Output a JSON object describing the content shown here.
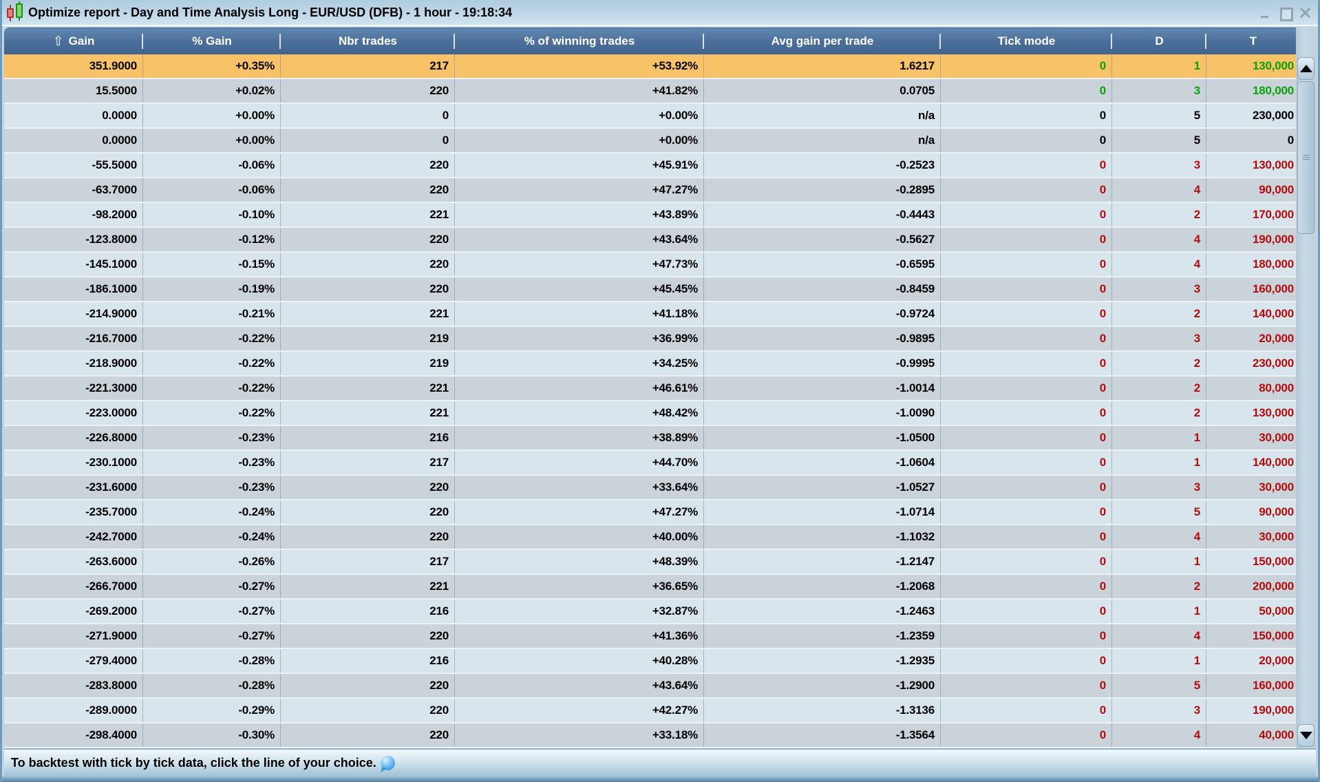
{
  "window": {
    "title": "Optimize report - Day and Time Analysis Long - EUR/USD (DFB) - 1 hour - 19:18:34"
  },
  "table": {
    "sort_icon": "⇧",
    "columns": [
      {
        "key": "gain",
        "label": "Gain",
        "sorted": true
      },
      {
        "key": "gain_pct",
        "label": "% Gain",
        "sorted": false
      },
      {
        "key": "nbr_trades",
        "label": "Nbr trades",
        "sorted": false
      },
      {
        "key": "win_pct",
        "label": "% of winning trades",
        "sorted": false
      },
      {
        "key": "avg_gain",
        "label": "Avg gain per trade",
        "sorted": false
      },
      {
        "key": "tick_mode",
        "label": "Tick mode",
        "sorted": false
      },
      {
        "key": "d",
        "label": "D",
        "sorted": false
      },
      {
        "key": "t",
        "label": "T",
        "sorted": false
      }
    ],
    "rows": [
      {
        "gain": "351.9000",
        "gain_pct": "+0.35%",
        "nbr_trades": "217",
        "win_pct": "+53.92%",
        "avg_gain": "1.6217",
        "tick_mode": "0",
        "d": "1",
        "t": "130,000",
        "value_color": "green",
        "highlighted": true
      },
      {
        "gain": "15.5000",
        "gain_pct": "+0.02%",
        "nbr_trades": "220",
        "win_pct": "+41.82%",
        "avg_gain": "0.0705",
        "tick_mode": "0",
        "d": "3",
        "t": "180,000",
        "value_color": "green",
        "highlighted": false
      },
      {
        "gain": "0.0000",
        "gain_pct": "+0.00%",
        "nbr_trades": "0",
        "win_pct": "+0.00%",
        "avg_gain": "n/a",
        "tick_mode": "0",
        "d": "5",
        "t": "230,000",
        "value_color": "black",
        "highlighted": false
      },
      {
        "gain": "0.0000",
        "gain_pct": "+0.00%",
        "nbr_trades": "0",
        "win_pct": "+0.00%",
        "avg_gain": "n/a",
        "tick_mode": "0",
        "d": "5",
        "t": "0",
        "value_color": "black",
        "highlighted": false
      },
      {
        "gain": "-55.5000",
        "gain_pct": "-0.06%",
        "nbr_trades": "220",
        "win_pct": "+45.91%",
        "avg_gain": "-0.2523",
        "tick_mode": "0",
        "d": "3",
        "t": "130,000",
        "value_color": "red",
        "highlighted": false
      },
      {
        "gain": "-63.7000",
        "gain_pct": "-0.06%",
        "nbr_trades": "220",
        "win_pct": "+47.27%",
        "avg_gain": "-0.2895",
        "tick_mode": "0",
        "d": "4",
        "t": "90,000",
        "value_color": "red",
        "highlighted": false
      },
      {
        "gain": "-98.2000",
        "gain_pct": "-0.10%",
        "nbr_trades": "221",
        "win_pct": "+43.89%",
        "avg_gain": "-0.4443",
        "tick_mode": "0",
        "d": "2",
        "t": "170,000",
        "value_color": "red",
        "highlighted": false
      },
      {
        "gain": "-123.8000",
        "gain_pct": "-0.12%",
        "nbr_trades": "220",
        "win_pct": "+43.64%",
        "avg_gain": "-0.5627",
        "tick_mode": "0",
        "d": "4",
        "t": "190,000",
        "value_color": "red",
        "highlighted": false
      },
      {
        "gain": "-145.1000",
        "gain_pct": "-0.15%",
        "nbr_trades": "220",
        "win_pct": "+47.73%",
        "avg_gain": "-0.6595",
        "tick_mode": "0",
        "d": "4",
        "t": "180,000",
        "value_color": "red",
        "highlighted": false
      },
      {
        "gain": "-186.1000",
        "gain_pct": "-0.19%",
        "nbr_trades": "220",
        "win_pct": "+45.45%",
        "avg_gain": "-0.8459",
        "tick_mode": "0",
        "d": "3",
        "t": "160,000",
        "value_color": "red",
        "highlighted": false
      },
      {
        "gain": "-214.9000",
        "gain_pct": "-0.21%",
        "nbr_trades": "221",
        "win_pct": "+41.18%",
        "avg_gain": "-0.9724",
        "tick_mode": "0",
        "d": "2",
        "t": "140,000",
        "value_color": "red",
        "highlighted": false
      },
      {
        "gain": "-216.7000",
        "gain_pct": "-0.22%",
        "nbr_trades": "219",
        "win_pct": "+36.99%",
        "avg_gain": "-0.9895",
        "tick_mode": "0",
        "d": "3",
        "t": "20,000",
        "value_color": "red",
        "highlighted": false
      },
      {
        "gain": "-218.9000",
        "gain_pct": "-0.22%",
        "nbr_trades": "219",
        "win_pct": "+34.25%",
        "avg_gain": "-0.9995",
        "tick_mode": "0",
        "d": "2",
        "t": "230,000",
        "value_color": "red",
        "highlighted": false
      },
      {
        "gain": "-221.3000",
        "gain_pct": "-0.22%",
        "nbr_trades": "221",
        "win_pct": "+46.61%",
        "avg_gain": "-1.0014",
        "tick_mode": "0",
        "d": "2",
        "t": "80,000",
        "value_color": "red",
        "highlighted": false
      },
      {
        "gain": "-223.0000",
        "gain_pct": "-0.22%",
        "nbr_trades": "221",
        "win_pct": "+48.42%",
        "avg_gain": "-1.0090",
        "tick_mode": "0",
        "d": "2",
        "t": "130,000",
        "value_color": "red",
        "highlighted": false
      },
      {
        "gain": "-226.8000",
        "gain_pct": "-0.23%",
        "nbr_trades": "216",
        "win_pct": "+38.89%",
        "avg_gain": "-1.0500",
        "tick_mode": "0",
        "d": "1",
        "t": "30,000",
        "value_color": "red",
        "highlighted": false
      },
      {
        "gain": "-230.1000",
        "gain_pct": "-0.23%",
        "nbr_trades": "217",
        "win_pct": "+44.70%",
        "avg_gain": "-1.0604",
        "tick_mode": "0",
        "d": "1",
        "t": "140,000",
        "value_color": "red",
        "highlighted": false
      },
      {
        "gain": "-231.6000",
        "gain_pct": "-0.23%",
        "nbr_trades": "220",
        "win_pct": "+33.64%",
        "avg_gain": "-1.0527",
        "tick_mode": "0",
        "d": "3",
        "t": "30,000",
        "value_color": "red",
        "highlighted": false
      },
      {
        "gain": "-235.7000",
        "gain_pct": "-0.24%",
        "nbr_trades": "220",
        "win_pct": "+47.27%",
        "avg_gain": "-1.0714",
        "tick_mode": "0",
        "d": "5",
        "t": "90,000",
        "value_color": "red",
        "highlighted": false
      },
      {
        "gain": "-242.7000",
        "gain_pct": "-0.24%",
        "nbr_trades": "220",
        "win_pct": "+40.00%",
        "avg_gain": "-1.1032",
        "tick_mode": "0",
        "d": "4",
        "t": "30,000",
        "value_color": "red",
        "highlighted": false
      },
      {
        "gain": "-263.6000",
        "gain_pct": "-0.26%",
        "nbr_trades": "217",
        "win_pct": "+48.39%",
        "avg_gain": "-1.2147",
        "tick_mode": "0",
        "d": "1",
        "t": "150,000",
        "value_color": "red",
        "highlighted": false
      },
      {
        "gain": "-266.7000",
        "gain_pct": "-0.27%",
        "nbr_trades": "221",
        "win_pct": "+36.65%",
        "avg_gain": "-1.2068",
        "tick_mode": "0",
        "d": "2",
        "t": "200,000",
        "value_color": "red",
        "highlighted": false
      },
      {
        "gain": "-269.2000",
        "gain_pct": "-0.27%",
        "nbr_trades": "216",
        "win_pct": "+32.87%",
        "avg_gain": "-1.2463",
        "tick_mode": "0",
        "d": "1",
        "t": "50,000",
        "value_color": "red",
        "highlighted": false
      },
      {
        "gain": "-271.9000",
        "gain_pct": "-0.27%",
        "nbr_trades": "220",
        "win_pct": "+41.36%",
        "avg_gain": "-1.2359",
        "tick_mode": "0",
        "d": "4",
        "t": "150,000",
        "value_color": "red",
        "highlighted": false
      },
      {
        "gain": "-279.4000",
        "gain_pct": "-0.28%",
        "nbr_trades": "216",
        "win_pct": "+40.28%",
        "avg_gain": "-1.2935",
        "tick_mode": "0",
        "d": "1",
        "t": "20,000",
        "value_color": "red",
        "highlighted": false
      },
      {
        "gain": "-283.8000",
        "gain_pct": "-0.28%",
        "nbr_trades": "220",
        "win_pct": "+43.64%",
        "avg_gain": "-1.2900",
        "tick_mode": "0",
        "d": "5",
        "t": "160,000",
        "value_color": "red",
        "highlighted": false
      },
      {
        "gain": "-289.0000",
        "gain_pct": "-0.29%",
        "nbr_trades": "220",
        "win_pct": "+42.27%",
        "avg_gain": "-1.3136",
        "tick_mode": "0",
        "d": "3",
        "t": "190,000",
        "value_color": "red",
        "highlighted": false
      },
      {
        "gain": "-298.4000",
        "gain_pct": "-0.30%",
        "nbr_trades": "220",
        "win_pct": "+33.18%",
        "avg_gain": "-1.3564",
        "tick_mode": "0",
        "d": "4",
        "t": "40,000",
        "value_color": "red",
        "highlighted": false
      }
    ]
  },
  "status_bar": {
    "message": "To backtest with tick by tick data, click the line of your choice."
  },
  "colors": {
    "highlight_row": "#f8c268",
    "row_light": "#d9e5ed",
    "row_dark": "#cbd3da",
    "header_background": "#4c6f9b",
    "positive_value": "#0aa00a",
    "negative_value": "#b10c0c",
    "neutral_value": "#000000"
  }
}
